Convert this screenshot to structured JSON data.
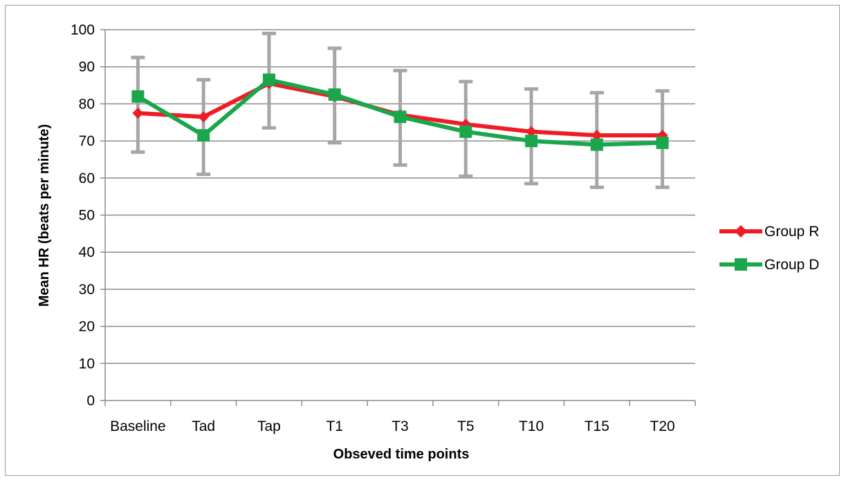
{
  "chart_data": {
    "type": "line",
    "xlabel": "Obseved time points",
    "ylabel": "Mean HR (beats per minute)",
    "categories": [
      "Baseline",
      "Tad",
      "Tap",
      "T1",
      "T3",
      "T5",
      "T10",
      "T15",
      "T20"
    ],
    "ylim": [
      0,
      100
    ],
    "yticks": [
      0,
      10,
      20,
      30,
      40,
      50,
      60,
      70,
      80,
      90,
      100
    ],
    "grid": true,
    "legend_position": "right",
    "series": [
      {
        "name": "Group R",
        "color": "#ee1c25",
        "marker": "diamond",
        "values": [
          77.5,
          76.5,
          85.5,
          82,
          77,
          74.5,
          72.5,
          71.5,
          71.5
        ]
      },
      {
        "name": "Group D",
        "color": "#1aa64b",
        "marker": "square",
        "values": [
          82,
          71.5,
          86.5,
          82.5,
          76.5,
          72.5,
          70,
          69,
          69.5
        ],
        "error_low": [
          67,
          61,
          73.5,
          69.5,
          63.5,
          60.5,
          58.5,
          57.5,
          57.5
        ],
        "error_high": [
          92.5,
          86.5,
          99,
          95,
          89,
          86,
          84,
          83,
          83.5
        ]
      }
    ]
  }
}
